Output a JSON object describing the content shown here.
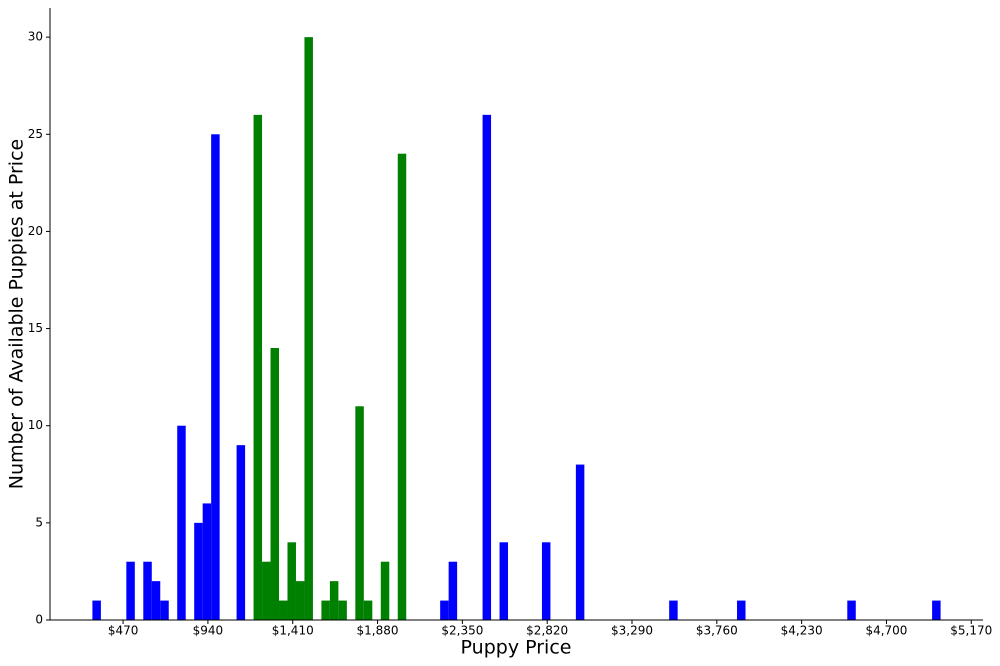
{
  "chart_data": {
    "type": "histogram",
    "xlabel": "Puppy Price",
    "ylabel": "Number of Available Puppies at Price",
    "bins": [
      300,
      347,
      394,
      441,
      488,
      535,
      582,
      629,
      676,
      723,
      770,
      817,
      864,
      911,
      958,
      1005,
      1052,
      1099,
      1146,
      1193,
      1240,
      1287,
      1334,
      1381,
      1428,
      1475,
      1522,
      1569,
      1616,
      1663,
      1710,
      1757,
      1804,
      1851,
      1898,
      1945,
      1992,
      2039,
      2086,
      2133,
      2180,
      2227,
      2274,
      2321,
      2368,
      2415,
      2462,
      2509,
      2556,
      2603,
      2650,
      2697,
      2744,
      2791,
      2838,
      2885,
      2932,
      2979,
      3026,
      3073,
      3120,
      3167,
      3214,
      3261,
      3308,
      3355,
      3402,
      3449,
      3496,
      3543,
      3590,
      3637,
      3684,
      3731,
      3778,
      3825,
      3872,
      3919,
      3966,
      4013,
      4060,
      4107,
      4154,
      4201,
      4248,
      4295,
      4342,
      4389,
      4436,
      4483,
      4530,
      4577,
      4624,
      4671,
      4718,
      4765,
      4812,
      4859,
      4906,
      4953,
      5000
    ],
    "values": [
      1,
      0,
      0,
      0,
      3,
      0,
      3,
      2,
      1,
      0,
      10,
      0,
      5,
      6,
      25,
      0,
      0,
      9,
      0,
      26,
      3,
      14,
      1,
      4,
      2,
      30,
      0,
      1,
      2,
      1,
      0,
      11,
      1,
      0,
      3,
      0,
      24,
      0,
      0,
      0,
      0,
      1,
      3,
      0,
      0,
      0,
      26,
      0,
      4,
      0,
      0,
      0,
      0,
      4,
      0,
      0,
      0,
      8,
      0,
      0,
      0,
      0,
      0,
      0,
      0,
      0,
      0,
      0,
      1,
      0,
      0,
      0,
      0,
      0,
      0,
      0,
      1,
      0,
      0,
      0,
      0,
      0,
      0,
      0,
      0,
      0,
      0,
      0,
      0,
      1,
      0,
      0,
      0,
      0,
      0,
      0,
      0,
      0,
      0,
      1
    ],
    "colors": [
      "#0000ff",
      "#0000ff",
      "#0000ff",
      "#0000ff",
      "#0000ff",
      "#0000ff",
      "#0000ff",
      "#0000ff",
      "#0000ff",
      "#0000ff",
      "#0000ff",
      "#0000ff",
      "#0000ff",
      "#0000ff",
      "#0000ff",
      "#0000ff",
      "#0000ff",
      "#0000ff",
      "#0000ff",
      "#008000",
      "#008000",
      "#008000",
      "#008000",
      "#008000",
      "#008000",
      "#008000",
      "#008000",
      "#008000",
      "#008000",
      "#008000",
      "#008000",
      "#008000",
      "#008000",
      "#008000",
      "#008000",
      "#008000",
      "#008000",
      "#0000ff",
      "#0000ff",
      "#0000ff",
      "#0000ff",
      "#0000ff",
      "#0000ff",
      "#0000ff",
      "#0000ff",
      "#0000ff",
      "#0000ff",
      "#0000ff",
      "#0000ff",
      "#0000ff",
      "#0000ff",
      "#0000ff",
      "#0000ff",
      "#0000ff",
      "#0000ff",
      "#0000ff",
      "#0000ff",
      "#0000ff",
      "#0000ff",
      "#0000ff",
      "#0000ff",
      "#0000ff",
      "#0000ff",
      "#0000ff",
      "#0000ff",
      "#0000ff",
      "#0000ff",
      "#0000ff",
      "#0000ff",
      "#0000ff",
      "#0000ff",
      "#0000ff",
      "#0000ff",
      "#0000ff",
      "#0000ff",
      "#0000ff",
      "#0000ff",
      "#0000ff",
      "#0000ff",
      "#0000ff",
      "#0000ff",
      "#0000ff",
      "#0000ff",
      "#0000ff",
      "#0000ff",
      "#0000ff",
      "#0000ff",
      "#0000ff",
      "#0000ff",
      "#0000ff",
      "#0000ff",
      "#0000ff",
      "#0000ff",
      "#0000ff",
      "#0000ff",
      "#0000ff",
      "#0000ff",
      "#0000ff",
      "#0000ff",
      "#0000ff"
    ],
    "xlim": [
      65,
      5235
    ],
    "ylim": [
      0,
      31.5
    ],
    "xticks": [
      {
        "value": 470,
        "label": "$470"
      },
      {
        "value": 940,
        "label": "$940"
      },
      {
        "value": 1410,
        "label": "$1,410"
      },
      {
        "value": 1880,
        "label": "$1,880"
      },
      {
        "value": 2350,
        "label": "$2,350"
      },
      {
        "value": 2820,
        "label": "$2,820"
      },
      {
        "value": 3290,
        "label": "$3,290"
      },
      {
        "value": 3760,
        "label": "$3,760"
      },
      {
        "value": 4230,
        "label": "$4,230"
      },
      {
        "value": 4700,
        "label": "$4,700"
      },
      {
        "value": 5170,
        "label": "$5,170"
      }
    ],
    "yticks": [
      0,
      5,
      10,
      15,
      20,
      25,
      30
    ]
  }
}
